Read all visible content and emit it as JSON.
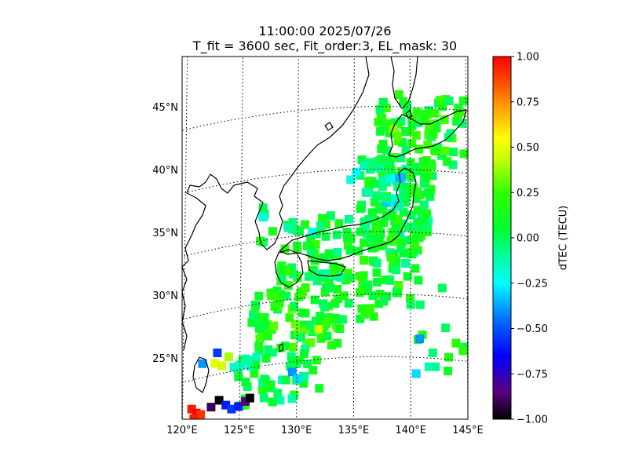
{
  "title": {
    "line1": "11:00:00 2025/07/26",
    "line2": "T_fit = 3600 sec, Fit_order:3, EL_mask: 30"
  },
  "map": {
    "lon_range": [
      120,
      145
    ],
    "lat_range": [
      20,
      49
    ],
    "lon_ticks": [
      {
        "value": 120,
        "label": "120°E"
      },
      {
        "value": 125,
        "label": "125°E"
      },
      {
        "value": 130,
        "label": "130°E"
      },
      {
        "value": 135,
        "label": "135°E"
      },
      {
        "value": 140,
        "label": "140°E"
      },
      {
        "value": 145,
        "label": "145°E"
      }
    ],
    "lat_ticks": [
      {
        "value": 25,
        "label": "25°N"
      },
      {
        "value": 30,
        "label": "30°N"
      },
      {
        "value": 35,
        "label": "35°N"
      },
      {
        "value": 40,
        "label": "40°N"
      },
      {
        "value": 45,
        "label": "45°N"
      }
    ],
    "grid": "dotted",
    "coastline_color": "#000000"
  },
  "colorbar": {
    "label": "dTEC (TECU)",
    "colormap": "gist_ncar-like",
    "range": [
      -1.0,
      1.0
    ],
    "ticks": [
      {
        "value": 1.0,
        "label": "1.00"
      },
      {
        "value": 0.75,
        "label": "0.75"
      },
      {
        "value": 0.5,
        "label": "0.50"
      },
      {
        "value": 0.25,
        "label": "0.25"
      },
      {
        "value": 0.0,
        "label": "0.00"
      },
      {
        "value": -0.25,
        "label": "−0.25"
      },
      {
        "value": -0.5,
        "label": "−0.50"
      },
      {
        "value": -0.75,
        "label": "−0.75"
      },
      {
        "value": -1.0,
        "label": "−1.00"
      }
    ],
    "stops": [
      {
        "v": -1.0,
        "color": "#000000"
      },
      {
        "v": -0.85,
        "color": "#5a0080"
      },
      {
        "v": -0.65,
        "color": "#0000ff"
      },
      {
        "v": -0.45,
        "color": "#0070ff"
      },
      {
        "v": -0.25,
        "color": "#00ffff"
      },
      {
        "v": -0.1,
        "color": "#00ffa0"
      },
      {
        "v": 0.05,
        "color": "#00ff30"
      },
      {
        "v": 0.25,
        "color": "#30ff00"
      },
      {
        "v": 0.45,
        "color": "#d0ff00"
      },
      {
        "v": 0.55,
        "color": "#ffff00"
      },
      {
        "v": 0.72,
        "color": "#ffa000"
      },
      {
        "v": 0.85,
        "color": "#ff5000"
      },
      {
        "v": 1.0,
        "color": "#ff0000"
      }
    ]
  },
  "dtec_regions": [
    {
      "lon": [
        128.5,
        141.0
      ],
      "lat": [
        31.0,
        36.5
      ],
      "value": 0.08,
      "n": 140
    },
    {
      "lon": [
        135.5,
        142.0
      ],
      "lat": [
        35.0,
        41.0
      ],
      "value": 0.05,
      "n": 110
    },
    {
      "lon": [
        137.0,
        145.0
      ],
      "lat": [
        40.5,
        46.0
      ],
      "value": 0.12,
      "n": 80
    },
    {
      "lon": [
        126.0,
        134.0
      ],
      "lat": [
        26.0,
        31.0
      ],
      "value": 0.15,
      "n": 90
    },
    {
      "lon": [
        124.0,
        132.0
      ],
      "lat": [
        22.0,
        26.0
      ],
      "value": 0.0,
      "n": 50
    },
    {
      "lon": [
        134.0,
        140.0
      ],
      "lat": [
        28.0,
        31.0
      ],
      "value": 0.1,
      "n": 25
    },
    {
      "lon": [
        140.0,
        145.0
      ],
      "lat": [
        23.5,
        31.0
      ],
      "value": 0.05,
      "n": 14
    },
    {
      "lon": [
        126.5,
        130.0
      ],
      "lat": [
        34.5,
        38.0
      ],
      "value": 0.05,
      "n": 10
    },
    {
      "lon": [
        137.5,
        139.5
      ],
      "lat": [
        37.0,
        39.5
      ],
      "value": -0.2,
      "n": 10
    }
  ],
  "dtec_points": [
    {
      "lon": 120.8,
      "lat": 22.7,
      "value": 0.95
    },
    {
      "lon": 121.2,
      "lat": 22.3,
      "value": 1.0
    },
    {
      "lon": 121.6,
      "lat": 22.1,
      "value": 0.9
    },
    {
      "lon": 121.0,
      "lat": 21.9,
      "value": 0.95
    },
    {
      "lon": 122.5,
      "lat": 22.5,
      "value": -0.9
    },
    {
      "lon": 123.2,
      "lat": 22.9,
      "value": -1.0
    },
    {
      "lon": 123.8,
      "lat": 22.4,
      "value": -0.6
    },
    {
      "lon": 124.3,
      "lat": 22.0,
      "value": -0.55
    },
    {
      "lon": 124.9,
      "lat": 22.1,
      "value": -0.6
    },
    {
      "lon": 125.5,
      "lat": 22.4,
      "value": -0.85
    },
    {
      "lon": 125.9,
      "lat": 22.6,
      "value": -1.0
    },
    {
      "lon": 122.8,
      "lat": 25.9,
      "value": 0.5
    },
    {
      "lon": 123.4,
      "lat": 25.6,
      "value": 0.45
    },
    {
      "lon": 124.0,
      "lat": 26.2,
      "value": 0.4
    },
    {
      "lon": 121.7,
      "lat": 26.1,
      "value": -0.4
    },
    {
      "lon": 123.0,
      "lat": 26.7,
      "value": -0.55
    },
    {
      "lon": 129.6,
      "lat": 24.2,
      "value": -0.4
    },
    {
      "lon": 130.1,
      "lat": 23.6,
      "value": -0.3
    },
    {
      "lon": 131.9,
      "lat": 27.4,
      "value": 0.45
    },
    {
      "lon": 140.8,
      "lat": 26.5,
      "value": -0.4
    },
    {
      "lon": 140.5,
      "lat": 23.7,
      "value": -0.3
    },
    {
      "lon": 132.5,
      "lat": 31.8,
      "value": -0.1
    },
    {
      "lon": 131.3,
      "lat": 35.2,
      "value": -0.2
    },
    {
      "lon": 126.9,
      "lat": 36.9,
      "value": -0.2
    },
    {
      "lon": 135.2,
      "lat": 39.8,
      "value": -0.25
    },
    {
      "lon": 134.7,
      "lat": 39.2,
      "value": -0.2
    },
    {
      "lon": 138.5,
      "lat": 43.2,
      "value": 0.35
    },
    {
      "lon": 138.9,
      "lat": 42.6,
      "value": 0.3
    }
  ]
}
